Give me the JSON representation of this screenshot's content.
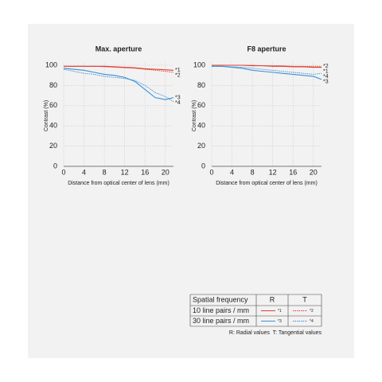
{
  "chart_data": [
    {
      "type": "line",
      "title": "Max. aperture",
      "xlabel": "Distance from optical center of lens (mm)",
      "ylabel": "Contrast (%)",
      "x": [
        0,
        2,
        4,
        6,
        8,
        10,
        12,
        14,
        16,
        18,
        20,
        21.6
      ],
      "xlim": [
        0,
        21.6
      ],
      "xticks": [
        0,
        4,
        8,
        12,
        16,
        20
      ],
      "ylim": [
        0,
        100
      ],
      "yticks": [
        0,
        20,
        40,
        60,
        80,
        100
      ],
      "grid": true,
      "series": [
        {
          "name": "*1",
          "color": "#e03c31",
          "style": "solid",
          "values": [
            99,
            99,
            99,
            99,
            99,
            98.5,
            98,
            97.5,
            96.5,
            96,
            95.5,
            95
          ]
        },
        {
          "name": "*2",
          "color": "#e03c31",
          "style": "dotted",
          "values": [
            99,
            99,
            99,
            99,
            98.5,
            98,
            97.5,
            97,
            96,
            95,
            94,
            93
          ]
        },
        {
          "name": "*3",
          "color": "#3c8fd6",
          "style": "solid",
          "values": [
            97,
            96,
            95,
            93,
            91,
            90,
            88,
            84,
            76,
            68,
            66,
            68
          ]
        },
        {
          "name": "*4",
          "color": "#3c8fd6",
          "style": "dotted",
          "values": [
            96,
            94,
            92,
            91,
            89,
            88,
            87,
            85,
            80,
            73,
            69,
            64
          ]
        }
      ]
    },
    {
      "type": "line",
      "title": "F8 aperture",
      "xlabel": "Distance from optical center of lens (mm)",
      "ylabel": "Contrast (%)",
      "x": [
        0,
        2,
        4,
        6,
        8,
        10,
        12,
        14,
        16,
        18,
        20,
        21.6
      ],
      "xlim": [
        0,
        21.6
      ],
      "xticks": [
        0,
        4,
        8,
        12,
        16,
        20
      ],
      "ylim": [
        0,
        100
      ],
      "yticks": [
        0,
        20,
        40,
        60,
        80,
        100
      ],
      "grid": true,
      "series": [
        {
          "name": "*1",
          "color": "#e03c31",
          "style": "solid",
          "values": [
            100,
            100,
            100,
            100,
            99.5,
            99.5,
            99,
            99,
            98.5,
            98.5,
            98,
            98
          ]
        },
        {
          "name": "*2",
          "color": "#e03c31",
          "style": "dotted",
          "values": [
            100,
            100,
            100,
            100,
            100,
            99.5,
            99.5,
            99.5,
            99,
            99,
            99,
            99
          ]
        },
        {
          "name": "*3",
          "color": "#3c8fd6",
          "style": "solid",
          "values": [
            99,
            99,
            98,
            97,
            95,
            94,
            93,
            92,
            91,
            90,
            89,
            86
          ]
        },
        {
          "name": "*4",
          "color": "#3c8fd6",
          "style": "dotted",
          "values": [
            99,
            99,
            98.5,
            98,
            97,
            96,
            95,
            94,
            93,
            92,
            91,
            92
          ]
        }
      ]
    }
  ],
  "legend_table": {
    "header": [
      "Spatial frequency",
      "R",
      "T"
    ],
    "rows": [
      "10 line pairs / mm",
      "30 line pairs / mm"
    ],
    "note": "R: Radial values  T: Tangential values"
  }
}
